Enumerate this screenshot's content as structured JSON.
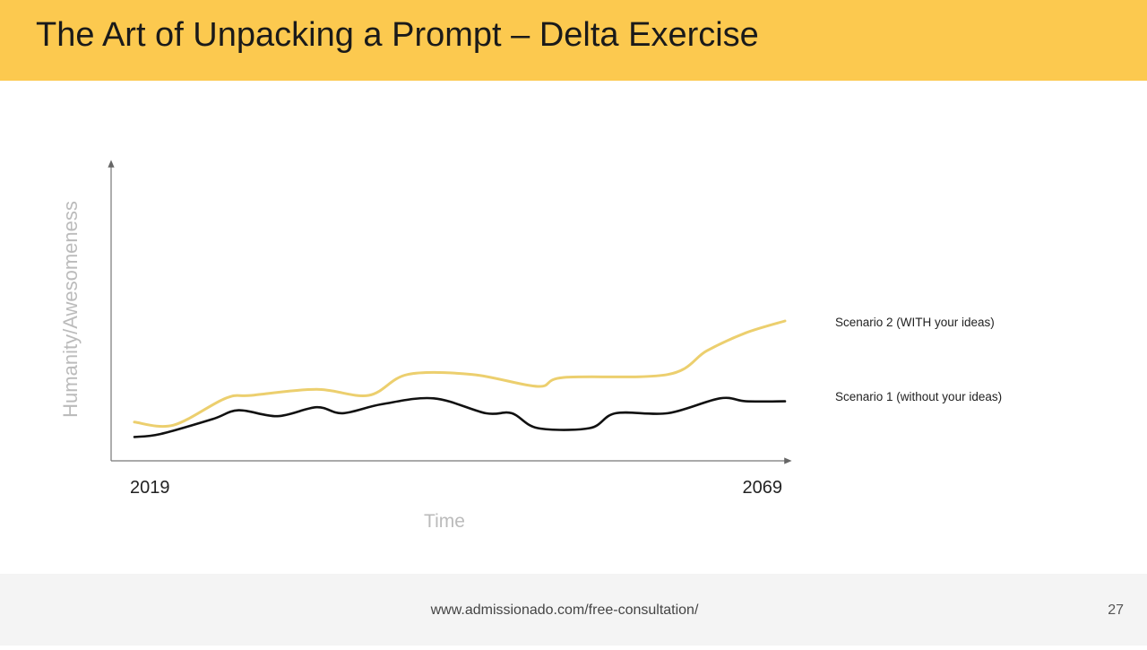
{
  "slide": {
    "title": "The Art of Unpacking a Prompt – Delta Exercise",
    "footer_url": "www.admissionado.com/free-consultation/",
    "page_number": "27"
  },
  "colors": {
    "header": "#fcc94f",
    "scenario2": "#eccf6e",
    "scenario1": "#111111",
    "axis_label": "#bbbbbb"
  },
  "chart_data": {
    "type": "line",
    "xlabel": "Time",
    "ylabel": "Humanity/Awesomeness",
    "x_ticks": [
      "2019",
      "2069"
    ],
    "xlim": [
      2019,
      2069
    ],
    "ylim": [
      0,
      100
    ],
    "grid": false,
    "legend": "right",
    "series": [
      {
        "name": "Scenario 2 (WITH your ideas)",
        "color": "#eccf6e",
        "x": [
          2019,
          2022,
          2026,
          2028,
          2033,
          2037,
          2040,
          2045,
          2050,
          2052,
          2060,
          2063,
          2066,
          2069
        ],
        "y": [
          13,
          12,
          21,
          22,
          24,
          22,
          29,
          29,
          25,
          28,
          29,
          37,
          43,
          47
        ]
      },
      {
        "name": "Scenario 1 (without your ideas)",
        "color": "#111111",
        "x": [
          2019,
          2021,
          2025,
          2027,
          2030,
          2033,
          2035,
          2038,
          2042,
          2046,
          2048,
          2050,
          2054,
          2056,
          2060,
          2064,
          2066,
          2069
        ],
        "y": [
          8,
          9,
          14,
          17,
          15,
          18,
          16,
          19,
          21,
          16,
          16,
          11,
          11,
          16,
          16,
          21,
          20,
          20
        ]
      }
    ]
  }
}
